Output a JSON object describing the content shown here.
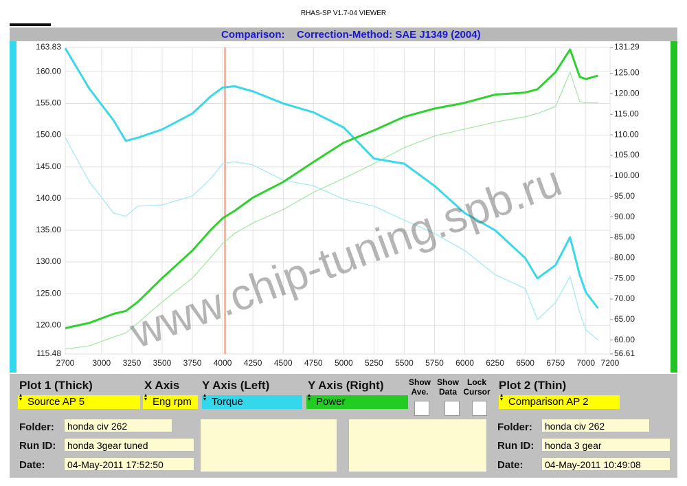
{
  "window_title": "RHAS-SP V1.7-04  VIEWER",
  "header": {
    "left": "Comparison:",
    "right": "Correction-Method: SAE J1349 (2004)"
  },
  "watermark": "www.chip-tuning.spb.ru",
  "chart_data": {
    "type": "line",
    "x": [
      2700,
      2900,
      3100,
      3200,
      3300,
      3500,
      3750,
      3900,
      4000,
      4100,
      4250,
      4500,
      4750,
      5000,
      5250,
      5500,
      5750,
      6000,
      6250,
      6500,
      6600,
      6750,
      6870,
      6950,
      7000,
      7100
    ],
    "series": [
      {
        "color": "#3bd8ea",
        "style": "thick",
        "values": [
          163.7,
          157.3,
          152.3,
          149.1,
          149.6,
          150.9,
          153.4,
          156.1,
          157.5,
          157.7,
          156.9,
          155.0,
          153.6,
          151.2,
          146.3,
          145.5,
          142.0,
          137.7,
          135.0,
          130.6,
          127.4,
          129.5,
          133.9,
          127.9,
          125.2,
          122.7
        ]
      },
      {
        "color": "#2ed12e",
        "style": "thick",
        "axis": "y2",
        "values": [
          62.9,
          64.2,
          66.4,
          67.1,
          69.3,
          75.1,
          81.8,
          86.8,
          89.7,
          91.5,
          94.7,
          98.5,
          103.4,
          108.1,
          111.1,
          114.4,
          116.4,
          117.8,
          119.8,
          120.3,
          121.1,
          125.3,
          130.8,
          124.1,
          123.6,
          124.4
        ]
      },
      {
        "color": "#a6eaf2",
        "style": "thin",
        "values": [
          149.6,
          142.6,
          137.7,
          137.2,
          138.8,
          139.0,
          140.4,
          143.1,
          145.5,
          145.8,
          145.3,
          142.9,
          142.0,
          139.9,
          138.8,
          136.6,
          134.5,
          131.8,
          128.0,
          125.8,
          120.9,
          123.6,
          127.7,
          122.0,
          119.3,
          117.7
        ]
      },
      {
        "color": "#a8e8a8",
        "style": "thin",
        "axis": "y2",
        "values": [
          57.8,
          58.6,
          60.8,
          61.7,
          64.2,
          69.3,
          75.1,
          80.1,
          83.5,
          86.0,
          88.5,
          91.8,
          96.0,
          99.4,
          103.0,
          106.9,
          109.7,
          111.4,
          113.1,
          114.4,
          115.2,
          116.9,
          125.3,
          118.1,
          117.8,
          117.8
        ]
      }
    ],
    "xlim": [
      2700,
      7200
    ],
    "xticks": [
      2700,
      3000,
      3250,
      3500,
      3750,
      4000,
      4250,
      4500,
      4750,
      5000,
      5250,
      5500,
      5750,
      6000,
      6250,
      6500,
      6750,
      7000,
      7200
    ],
    "ylim": [
      115.48,
      163.83
    ],
    "yticks": [
      115.48,
      {
        "value": 120,
        "label": "120.00"
      },
      {
        "value": 125,
        "label": "125.00"
      },
      {
        "value": 130,
        "label": "130.00"
      },
      {
        "value": 135,
        "label": "135.00"
      },
      {
        "value": 140,
        "label": "140.00"
      },
      {
        "value": 145,
        "label": "145.00"
      },
      {
        "value": 150,
        "label": "150.00"
      },
      {
        "value": 155,
        "label": "155.00"
      },
      {
        "value": 160,
        "label": "160.00"
      },
      163.83
    ],
    "y2lim": [
      56.61,
      131.29
    ],
    "y2ticks": [
      56.61,
      {
        "value": 60,
        "label": "60.00"
      },
      {
        "value": 65,
        "label": "65.00"
      },
      {
        "value": 70,
        "label": "70.00"
      },
      {
        "value": 75,
        "label": "75.00"
      },
      {
        "value": 80,
        "label": "80.00"
      },
      {
        "value": 85,
        "label": "85.00"
      },
      {
        "value": 90,
        "label": "90.00"
      },
      {
        "value": 95,
        "label": "95.00"
      },
      {
        "value": 100,
        "label": "100.00"
      },
      {
        "value": 105,
        "label": "105.00"
      },
      {
        "value": 110,
        "label": "110.00"
      },
      {
        "value": 115,
        "label": "115.00"
      },
      {
        "value": 120,
        "label": "120.00"
      },
      {
        "value": 125,
        "label": "125.00"
      },
      131.29
    ],
    "cursor_x": 4020,
    "grid": true
  },
  "panel": {
    "plot1": {
      "label": "Plot 1 (Thick)",
      "source": "Source AP 5",
      "folder": "honda civ 262",
      "run_id": "honda 3gear tuned",
      "date": "04-May-2011  17:52:50"
    },
    "x_axis": {
      "label": "X Axis",
      "value": "Eng rpm"
    },
    "y_left": {
      "label": "Y Axis (Left)",
      "value": "Torque"
    },
    "y_right": {
      "label": "Y Axis (Right)",
      "value": "Power"
    },
    "show_ave": "Show Ave.",
    "show_data": "Show Data",
    "lock_cursor": "Lock Cursor",
    "plot2": {
      "label": "Plot 2 (Thin)",
      "source": "Comparison AP 2",
      "folder": "honda civ 262",
      "run_id": "honda 3 gear",
      "date": "04-May-2011  10:49:08"
    },
    "folder_label": "Folder:",
    "run_id_label": "Run ID:",
    "date_label": "Date:"
  }
}
